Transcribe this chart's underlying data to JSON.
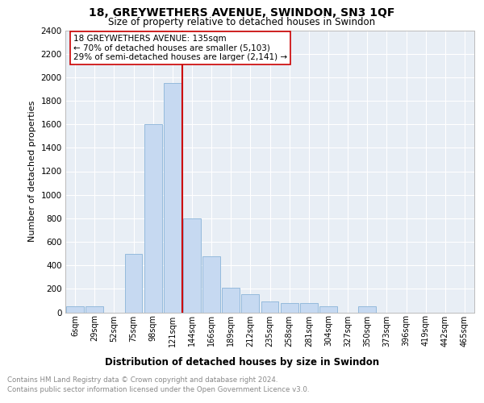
{
  "title": "18, GREYWETHERS AVENUE, SWINDON, SN3 1QF",
  "subtitle": "Size of property relative to detached houses in Swindon",
  "xlabel": "Distribution of detached houses by size in Swindon",
  "ylabel": "Number of detached properties",
  "categories": [
    "6sqm",
    "29sqm",
    "52sqm",
    "75sqm",
    "98sqm",
    "121sqm",
    "144sqm",
    "166sqm",
    "189sqm",
    "212sqm",
    "235sqm",
    "258sqm",
    "281sqm",
    "304sqm",
    "327sqm",
    "350sqm",
    "373sqm",
    "396sqm",
    "419sqm",
    "442sqm",
    "465sqm"
  ],
  "values": [
    50,
    50,
    0,
    500,
    1600,
    1950,
    800,
    480,
    210,
    155,
    90,
    80,
    80,
    50,
    0,
    50,
    0,
    0,
    0,
    0,
    0
  ],
  "bar_color": "#c6d9f1",
  "bar_edge_color": "#8ab4d8",
  "vline_x_idx": 5.5,
  "vline_color": "#cc0000",
  "annotation_text": "18 GREYWETHERS AVENUE: 135sqm\n← 70% of detached houses are smaller (5,103)\n29% of semi-detached houses are larger (2,141) →",
  "annotation_box_facecolor": "#ffffff",
  "annotation_box_edgecolor": "#cc0000",
  "ylim": [
    0,
    2400
  ],
  "yticks": [
    0,
    200,
    400,
    600,
    800,
    1000,
    1200,
    1400,
    1600,
    1800,
    2000,
    2200,
    2400
  ],
  "footer_line1": "Contains HM Land Registry data © Crown copyright and database right 2024.",
  "footer_line2": "Contains public sector information licensed under the Open Government Licence v3.0.",
  "plot_bg_color": "#e8eef5",
  "grid_color": "#ffffff"
}
